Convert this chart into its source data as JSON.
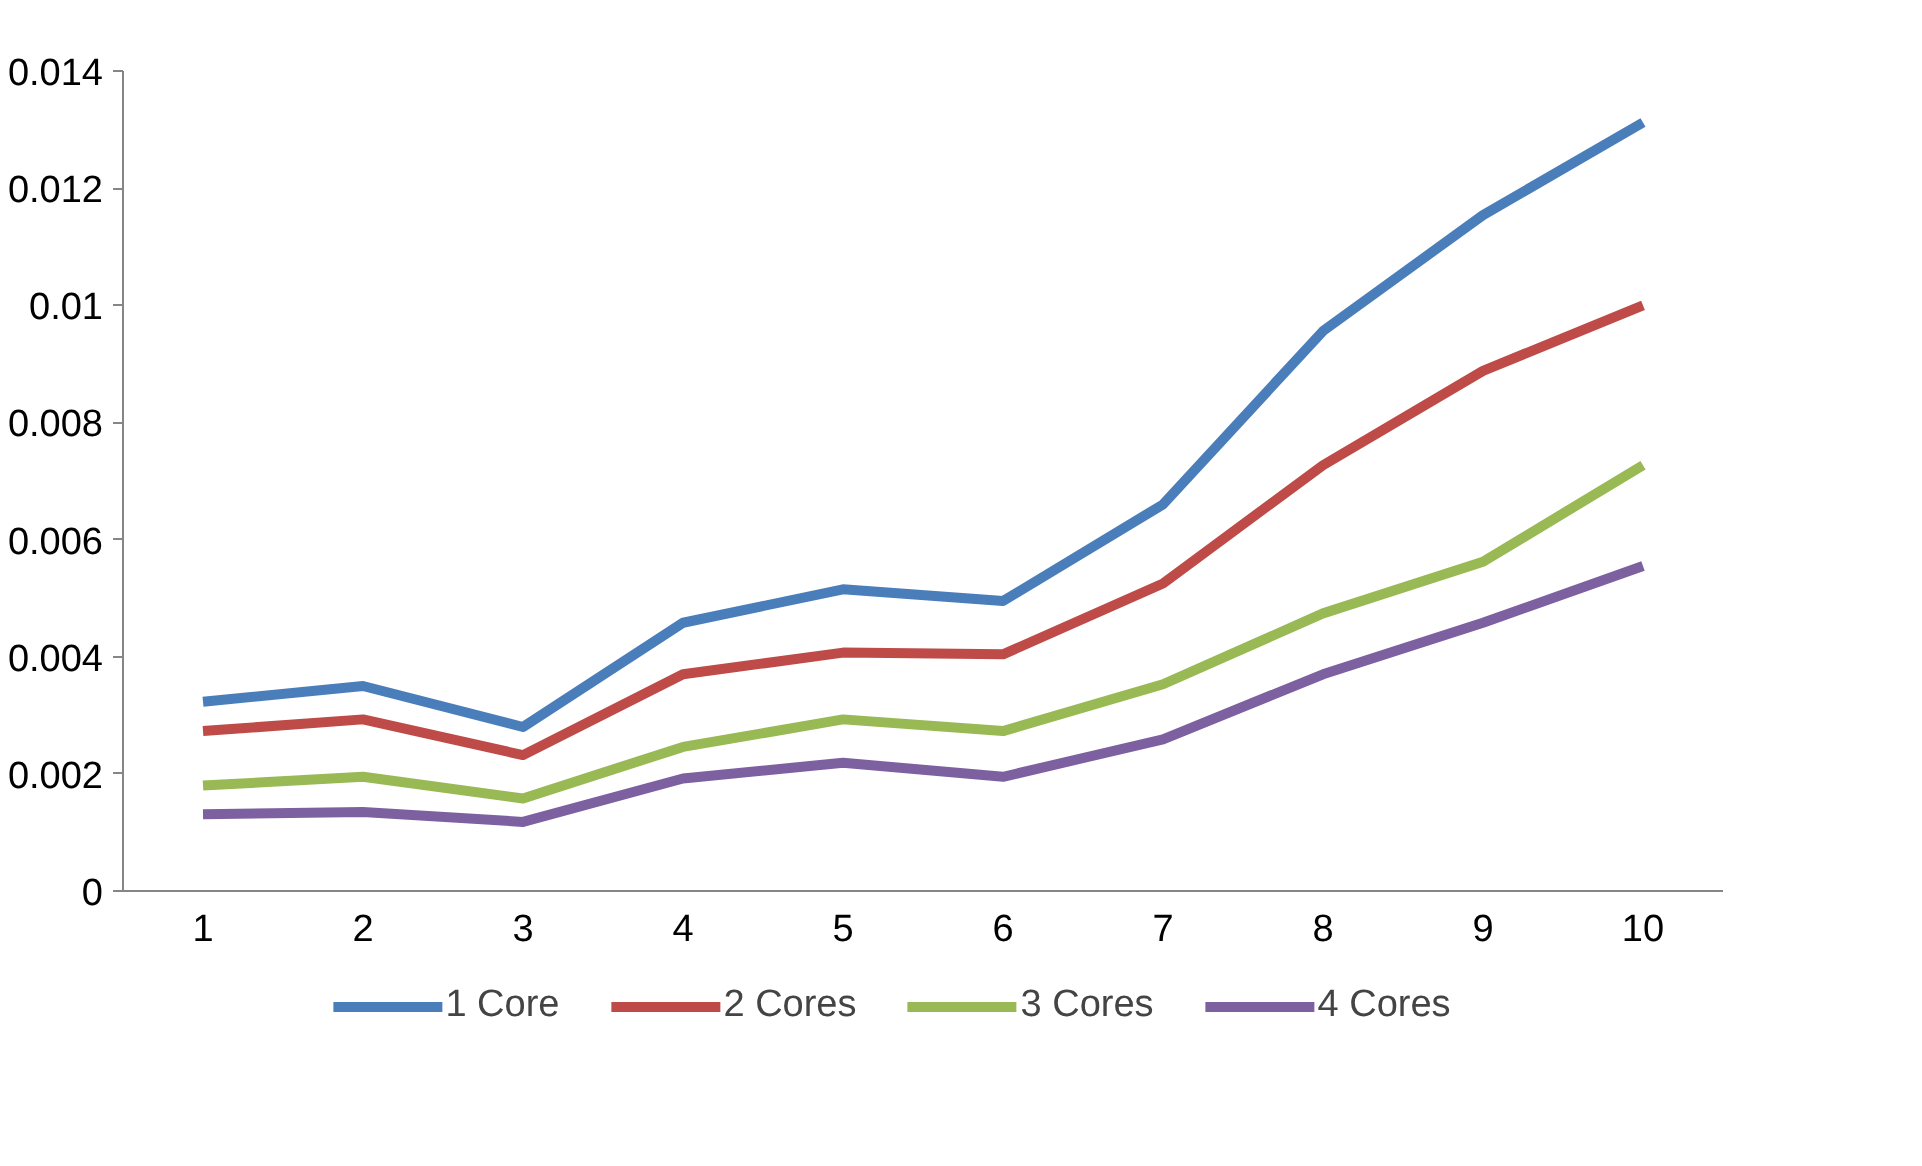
{
  "chart_data": {
    "type": "line",
    "categories": [
      "1",
      "2",
      "3",
      "4",
      "5",
      "6",
      "7",
      "8",
      "9",
      "10"
    ],
    "series": [
      {
        "name": "1 Core",
        "color": "#4a7ebb",
        "values": [
          0.00323,
          0.0035,
          0.0028,
          0.00458,
          0.00515,
          0.00495,
          0.0066,
          0.00956,
          0.01154,
          0.01312
        ]
      },
      {
        "name": "2 Cores",
        "color": "#be4b48",
        "values": [
          0.00273,
          0.00293,
          0.00232,
          0.0037,
          0.00407,
          0.00404,
          0.00525,
          0.00727,
          0.00888,
          0.01
        ]
      },
      {
        "name": "3 Cores",
        "color": "#98b954",
        "values": [
          0.0018,
          0.00195,
          0.00158,
          0.00246,
          0.00293,
          0.00273,
          0.00353,
          0.00474,
          0.00562,
          0.00727
        ]
      },
      {
        "name": "4 Cores",
        "color": "#7d60a0",
        "values": [
          0.00131,
          0.00135,
          0.00118,
          0.00192,
          0.00219,
          0.00195,
          0.00259,
          0.0037,
          0.00458,
          0.00555
        ]
      }
    ],
    "ylim": [
      0,
      0.014
    ],
    "yticks": [
      0,
      0.002,
      0.004,
      0.006,
      0.008,
      0.01,
      0.012,
      0.014
    ],
    "grid": false,
    "legend": "bottom",
    "marker": "none",
    "line_style": "solid"
  }
}
